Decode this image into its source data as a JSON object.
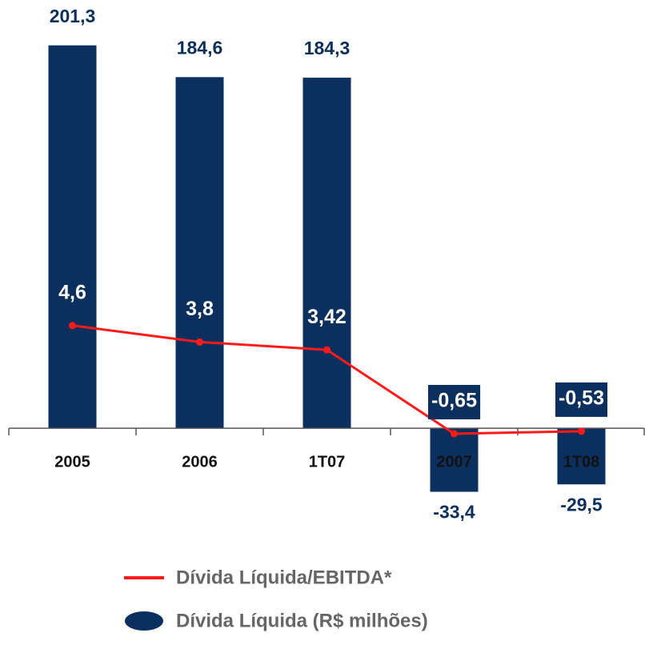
{
  "chart_data": {
    "type": "bar",
    "categories": [
      "2005",
      "2006",
      "1T07",
      "2007",
      "1T08"
    ],
    "series": [
      {
        "name": "Dívida Líquida (R$ milhões)",
        "type": "bar",
        "color": "#0b2f5e",
        "values": [
          201.3,
          184.6,
          184.3,
          -33.4,
          -29.5
        ],
        "value_labels": [
          "201,3",
          "184,6",
          "184,3",
          "-33,4",
          "-29,5"
        ]
      },
      {
        "name": "Dívida Líquida/EBITDA*",
        "type": "line",
        "axis": "y2",
        "color": "#ff1a1a",
        "values": [
          4.6,
          3.8,
          3.42,
          -0.65,
          -0.53
        ],
        "value_labels": [
          "4,6",
          "3,8",
          "3,42",
          "-0,65",
          "-0,53"
        ]
      }
    ],
    "ylim": [
      -50,
      210
    ],
    "y2lim": [
      -5,
      19
    ],
    "legend": "bottom"
  }
}
